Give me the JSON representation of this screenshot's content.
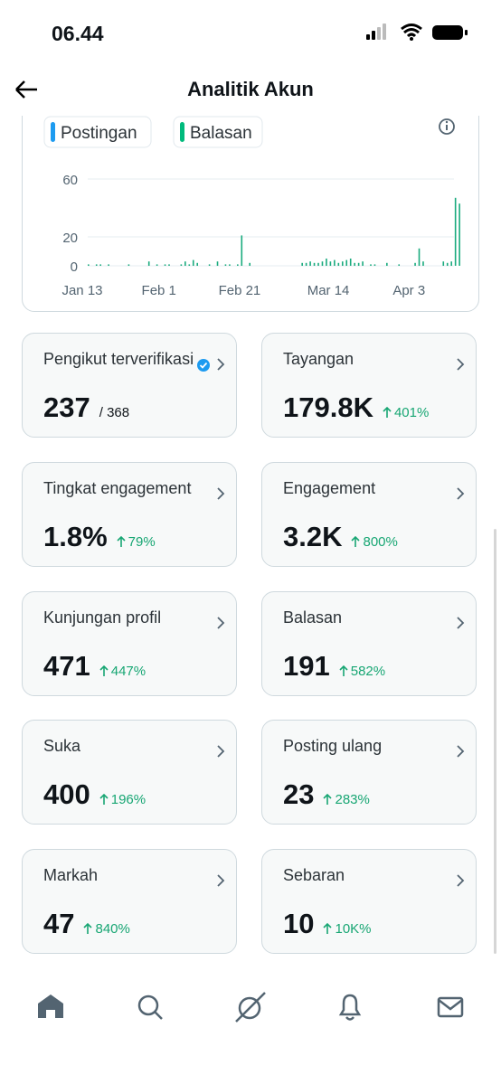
{
  "status_bar": {
    "time": "06.44"
  },
  "header": {
    "title": "Analitik Akun"
  },
  "chart": {
    "type": "bar",
    "legend": [
      {
        "name": "Postingan",
        "color": "#1d9bf0"
      },
      {
        "name": "Balasan",
        "color": "#00ba7c"
      }
    ],
    "color": "#1aab7e",
    "categories": [
      "Jan 13",
      null,
      null,
      null,
      null,
      null,
      null,
      null,
      null,
      null,
      null,
      null,
      null,
      null,
      null,
      null,
      null,
      null,
      null,
      "Feb 1",
      null,
      null,
      null,
      null,
      null,
      null,
      null,
      null,
      null,
      null,
      null,
      null,
      null,
      null,
      null,
      null,
      null,
      null,
      null,
      "Feb 21",
      null,
      null,
      null,
      null,
      null,
      null,
      null,
      null,
      null,
      null,
      null,
      null,
      null,
      null,
      null,
      null,
      null,
      null,
      null,
      null,
      null,
      "Mar 14",
      null,
      null,
      null,
      null,
      null,
      null,
      null,
      null,
      null,
      null,
      null,
      null,
      null,
      null,
      null,
      null,
      null,
      null,
      null,
      "Apr 3",
      null,
      null,
      null,
      null,
      null,
      null,
      null,
      null,
      null,
      null,
      null
    ],
    "values": [
      1,
      0,
      1,
      1,
      0,
      1,
      0,
      0,
      0,
      0,
      1,
      0,
      0,
      0,
      0,
      3,
      0,
      1,
      0,
      1,
      1,
      0,
      0,
      1,
      3,
      1,
      4,
      2,
      0,
      0,
      1,
      0,
      3,
      0,
      1,
      1,
      0,
      1,
      21,
      0,
      2,
      0,
      0,
      0,
      0,
      0,
      0,
      0,
      0,
      0,
      0,
      0,
      0,
      2,
      2,
      3,
      2,
      2,
      3,
      5,
      3,
      4,
      2,
      3,
      4,
      5,
      2,
      2,
      3,
      0,
      1,
      1,
      0,
      0,
      2,
      0,
      0,
      1,
      0,
      0,
      0,
      2,
      12,
      3,
      0,
      0,
      0,
      0,
      3,
      2,
      3,
      47,
      43
    ],
    "ylim": [
      0,
      60
    ],
    "yticks": [
      0,
      20,
      60
    ],
    "grid": true
  },
  "cards": [
    {
      "label": "Pengikut terverifikasi",
      "value": "237",
      "total": "/ 368"
    },
    {
      "label": "Tayangan",
      "value": "179.8K",
      "change": "401%"
    },
    {
      "label": "Tingkat engagement",
      "value": "1.8%",
      "change": "79%"
    },
    {
      "label": "Engagement",
      "value": "3.2K",
      "change": "800%"
    },
    {
      "label": "Kunjungan profil",
      "value": "471",
      "change": "447%"
    },
    {
      "label": "Balasan",
      "value": "191",
      "change": "582%"
    },
    {
      "label": "Suka",
      "value": "400",
      "change": "196%"
    },
    {
      "label": "Posting ulang",
      "value": "23",
      "change": "283%"
    },
    {
      "label": "Markah",
      "value": "47",
      "change": "840%"
    },
    {
      "label": "Sebaran",
      "value": "10",
      "change": "10K%"
    }
  ]
}
